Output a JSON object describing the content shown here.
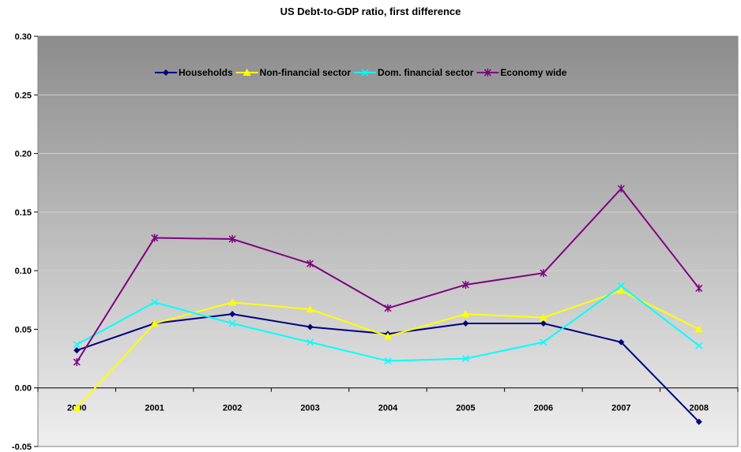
{
  "chart_data": {
    "type": "line",
    "title": "US Debt-to-GDP ratio, first difference",
    "xlabel": "",
    "ylabel": "",
    "categories": [
      "2000",
      "2001",
      "2002",
      "2003",
      "2004",
      "2005",
      "2006",
      "2007",
      "2008"
    ],
    "ylim": [
      -0.05,
      0.3
    ],
    "yticks": [
      "0.30",
      "0.25",
      "0.20",
      "0.15",
      "0.10",
      "0.05",
      "0.00",
      "-0.05"
    ],
    "ytick_values": [
      0.3,
      0.25,
      0.2,
      0.15,
      0.1,
      0.05,
      0.0,
      -0.05
    ],
    "grid": true,
    "legend_position": "top-center",
    "series": [
      {
        "name": "Households",
        "color": "#000080",
        "marker": "diamond",
        "values": [
          0.032,
          0.055,
          0.063,
          0.052,
          0.046,
          0.055,
          0.055,
          0.039,
          -0.029
        ]
      },
      {
        "name": "Non-financial sector",
        "color": "#FFFF00",
        "marker": "triangle",
        "values": [
          -0.017,
          0.055,
          0.073,
          0.067,
          0.044,
          0.063,
          0.06,
          0.083,
          0.05
        ]
      },
      {
        "name": "Dom. financial sector",
        "color": "#00FFFF",
        "marker": "x",
        "values": [
          0.037,
          0.073,
          0.055,
          0.039,
          0.023,
          0.025,
          0.039,
          0.087,
          0.036
        ]
      },
      {
        "name": "Economy wide",
        "color": "#800080",
        "marker": "star",
        "values": [
          0.022,
          0.128,
          0.127,
          0.106,
          0.068,
          0.088,
          0.098,
          0.17,
          0.085
        ]
      }
    ]
  }
}
